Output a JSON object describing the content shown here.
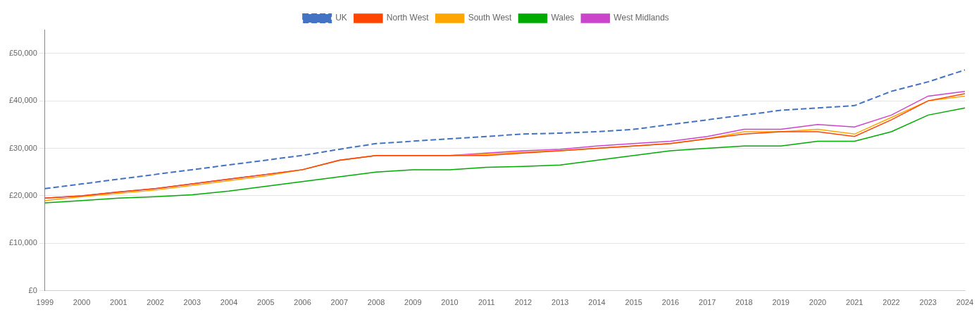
{
  "chart_data": {
    "type": "line",
    "categories": [
      "1999",
      "2000",
      "2001",
      "2002",
      "2003",
      "2004",
      "2005",
      "2006",
      "2007",
      "2008",
      "2009",
      "2010",
      "2011",
      "2012",
      "2013",
      "2014",
      "2015",
      "2016",
      "2017",
      "2018",
      "2019",
      "2020",
      "2021",
      "2022",
      "2023",
      "2024"
    ],
    "series": [
      {
        "name": "UK",
        "color": "#4472C4",
        "line_style": "dashed",
        "values": [
          21500,
          22500,
          23500,
          24500,
          25500,
          26500,
          27500,
          28500,
          29800,
          31000,
          31500,
          32000,
          32500,
          33000,
          33200,
          33500,
          34000,
          35000,
          36000,
          37000,
          38000,
          38500,
          39000,
          42000,
          44000,
          46500
        ]
      },
      {
        "name": "North West",
        "color": "#FF4500",
        "line_style": "solid",
        "values": [
          19500,
          20000,
          20800,
          21500,
          22500,
          23500,
          24500,
          25500,
          27500,
          28500,
          28500,
          28500,
          28500,
          29000,
          29500,
          30000,
          30500,
          31000,
          32000,
          33000,
          33500,
          33500,
          32500,
          36000,
          40000,
          41500
        ]
      },
      {
        "name": "South West",
        "color": "#FFA500",
        "line_style": "solid",
        "values": [
          19000,
          19800,
          20500,
          21200,
          22200,
          23200,
          24200,
          25500,
          27500,
          28500,
          28500,
          28500,
          28800,
          29200,
          29500,
          30000,
          30500,
          31000,
          32000,
          33500,
          33500,
          34000,
          33000,
          36500,
          40000,
          41000
        ]
      },
      {
        "name": "Wales",
        "color": "#00AA00",
        "line_style": "solid",
        "values": [
          18500,
          19000,
          19500,
          19800,
          20200,
          21000,
          22000,
          23000,
          24000,
          25000,
          25500,
          25500,
          26000,
          26200,
          26500,
          27500,
          28500,
          29500,
          30000,
          30500,
          30500,
          31500,
          31500,
          33500,
          37000,
          38500
        ]
      },
      {
        "name": "West Midlands",
        "color": "#CC44CC",
        "line_style": "solid",
        "values": [
          19500,
          20000,
          20800,
          21500,
          22500,
          23500,
          24500,
          25500,
          27500,
          28500,
          28500,
          28500,
          29000,
          29500,
          29800,
          30500,
          31000,
          31500,
          32500,
          34000,
          34000,
          35000,
          34500,
          37000,
          41000,
          42000
        ]
      }
    ],
    "ylim": [
      0,
      55000
    ],
    "yticks": [
      {
        "value": 0,
        "label": "£0"
      },
      {
        "value": 10000,
        "label": "£10,000"
      },
      {
        "value": 20000,
        "label": "£20,000"
      },
      {
        "value": 30000,
        "label": "£30,000"
      },
      {
        "value": 40000,
        "label": "£40,000"
      },
      {
        "value": 50000,
        "label": "£50,000"
      }
    ],
    "grid": true,
    "legend": "top"
  }
}
